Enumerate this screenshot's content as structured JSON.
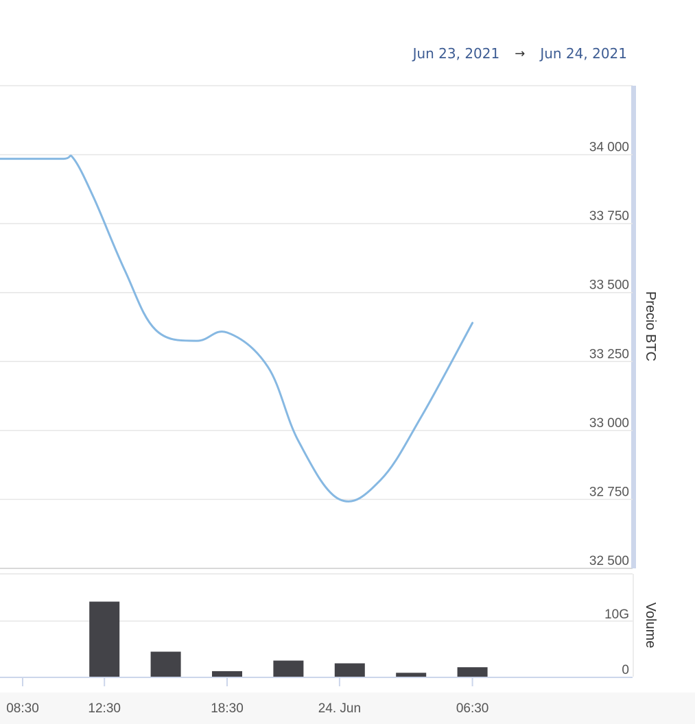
{
  "date_range": {
    "from": "Jun 23, 2021",
    "arrow": "→",
    "to": "Jun 24, 2021"
  },
  "colors": {
    "price_line": "#86b8e2",
    "volume_bar": "#434348",
    "grid": "#e6e6e6",
    "range_text": "#3d5c93",
    "scrollbar": "#ccd6eb"
  },
  "chart_data": [
    {
      "type": "line",
      "ylabel": "Precio BTC",
      "ylim": [
        32500,
        34250
      ],
      "yticks": [
        34000,
        33750,
        33500,
        33250,
        33000,
        32750,
        32500
      ],
      "ytick_labels": [
        "34 000",
        "33 750",
        "33 500",
        "33 250",
        "33 000",
        "32 750",
        "32 500"
      ],
      "grid": true,
      "series": [
        {
          "x": [
            "2021-06-23 06:00",
            "2021-06-23 08:30",
            "2021-06-23 10:30",
            "2021-06-23 11:00",
            "2021-06-23 12:00",
            "2021-06-23 13:30",
            "2021-06-23 15:00",
            "2021-06-23 17:00",
            "2021-06-23 18:30",
            "2021-06-23 20:30",
            "2021-06-23 22:00",
            "2021-06-24 00:00",
            "2021-06-24 02:00",
            "2021-06-24 04:00",
            "2021-06-24 06:30"
          ],
          "values": [
            33985,
            33985,
            33985,
            33985,
            33840,
            33580,
            33365,
            33325,
            33355,
            33230,
            32960,
            32750,
            32820,
            33050,
            33390
          ]
        }
      ]
    },
    {
      "type": "bar",
      "ylabel": "Volume",
      "ylim": [
        0,
        18.5
      ],
      "yticks": [
        0,
        10
      ],
      "ytick_labels": [
        "0",
        "10G"
      ],
      "x_axis_labels": [
        "08:30",
        "12:30",
        "18:30",
        "24. Jun",
        "06:30"
      ],
      "categories": [
        "2021-06-23 12:30",
        "2021-06-23 15:30",
        "2021-06-23 18:30",
        "2021-06-23 21:30",
        "2021-06-24 00:30",
        "2021-06-24 03:30",
        "2021-06-24 06:30"
      ],
      "values": [
        13.5,
        4.5,
        1.0,
        2.9,
        2.4,
        0.7,
        1.7
      ]
    }
  ]
}
